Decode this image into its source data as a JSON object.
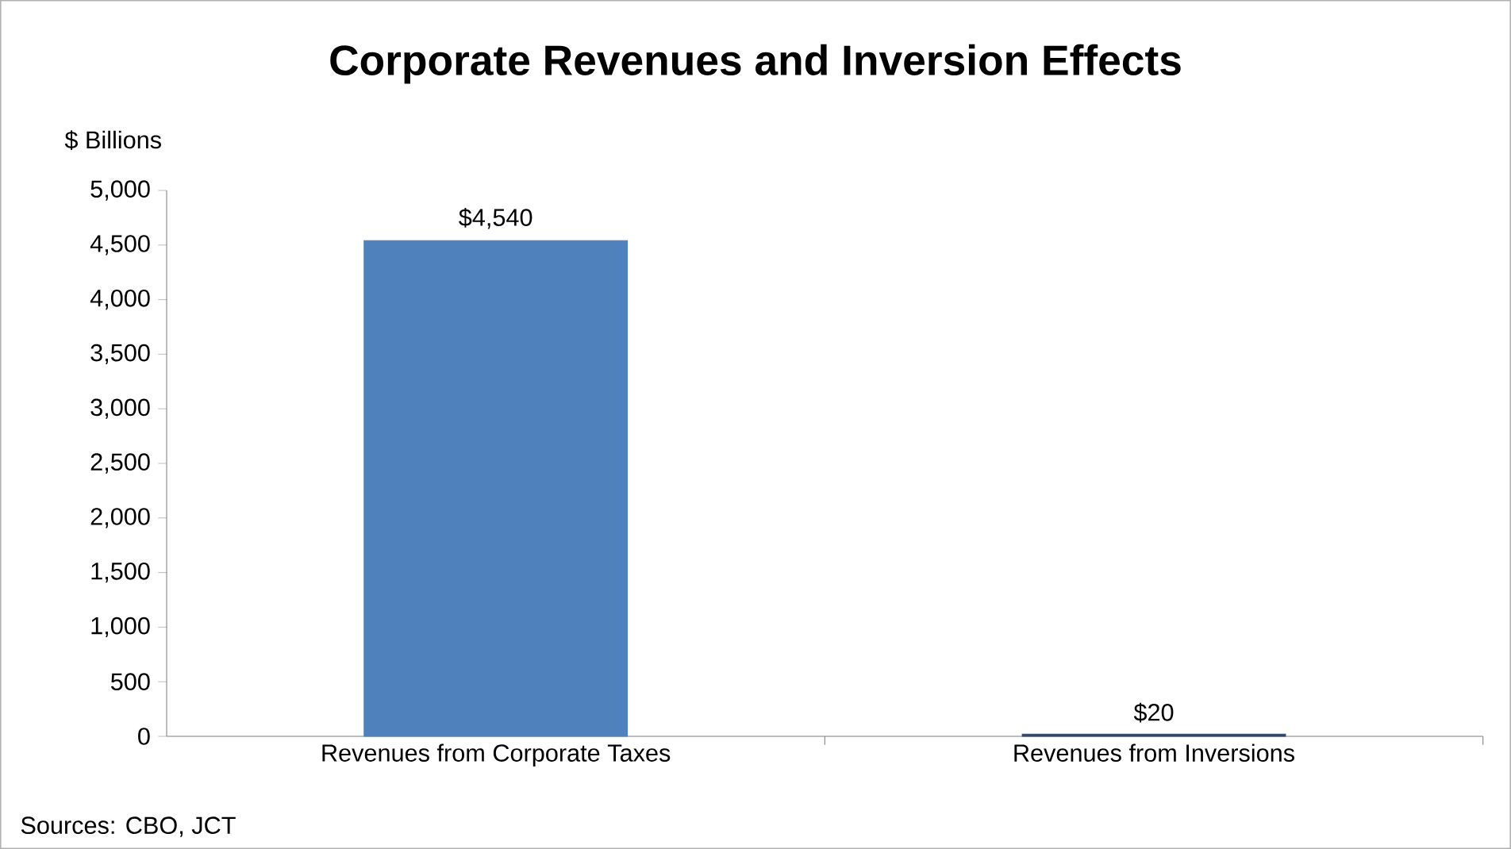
{
  "chart_data": {
    "type": "bar",
    "title": "Corporate Revenues and Inversion Effects",
    "ylabel": "$ Billions",
    "categories": [
      "Revenues from Corporate Taxes",
      "Revenues from Inversions"
    ],
    "values": [
      4540,
      20
    ],
    "value_labels": [
      "$4,540",
      "$20"
    ],
    "colors": [
      "#4f81bd",
      "#2c4770"
    ],
    "ylim": [
      0,
      5000
    ],
    "yticks": [
      {
        "value": 0,
        "label": "0"
      },
      {
        "value": 500,
        "label": "500"
      },
      {
        "value": 1000,
        "label": "1,000"
      },
      {
        "value": 1500,
        "label": "1,500"
      },
      {
        "value": 2000,
        "label": "2,000"
      },
      {
        "value": 2500,
        "label": "2,500"
      },
      {
        "value": 3000,
        "label": "3,000"
      },
      {
        "value": 3500,
        "label": "3,500"
      },
      {
        "value": 4000,
        "label": "4,000"
      },
      {
        "value": 4500,
        "label": "4,500"
      },
      {
        "value": 5000,
        "label": "5,000"
      }
    ],
    "grid": false,
    "annotations": [
      "Sources: CBO, JCT"
    ]
  }
}
